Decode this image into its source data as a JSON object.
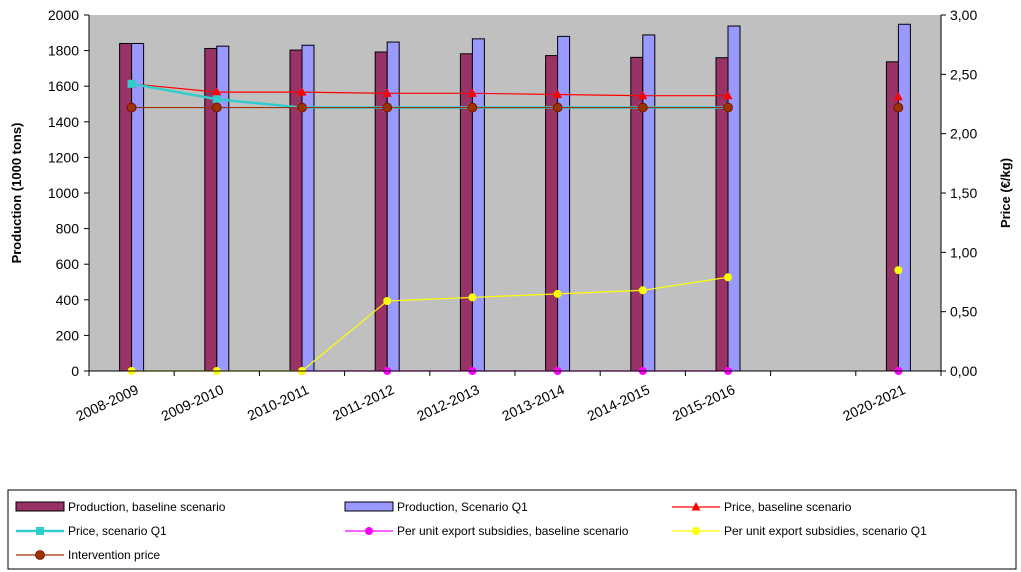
{
  "chart_data": {
    "type": "bar",
    "categories": [
      "2008-2009",
      "2009-2010",
      "2010-2011",
      "2011-2012",
      "2012-2013",
      "2013-2014",
      "2014-2015",
      "2015-2016",
      "",
      "2020-2021"
    ],
    "ylabel": "Production (1000 tons)",
    "y2label": "Price (€/kg)",
    "ylim": [
      0,
      2000
    ],
    "y2lim": [
      0,
      3
    ],
    "yticks": [
      "0",
      "200",
      "400",
      "600",
      "800",
      "1000",
      "1200",
      "1400",
      "1600",
      "1800",
      "2000"
    ],
    "y2ticks": [
      "0,00",
      "0,50",
      "1,00",
      "1,50",
      "2,00",
      "2,50",
      "3,00"
    ],
    "grid": false,
    "plot_background": "#c0c0c0",
    "legend_position": "bottom",
    "bar_series": [
      {
        "name": "Production, baseline scenario",
        "color": "#993366",
        "values": [
          1840,
          1812,
          1803,
          1792,
          1782,
          1772,
          1762,
          1760,
          null,
          1737
        ]
      },
      {
        "name": "Production, Scenario Q1",
        "color": "#9999ff",
        "values": [
          1840,
          1825,
          1830,
          1848,
          1866,
          1880,
          1888,
          1938,
          null,
          1948
        ]
      }
    ],
    "line_series": [
      {
        "name": "Price, baseline scenario",
        "color": "#ff0000",
        "marker": "triangle",
        "values": [
          2.42,
          2.35,
          2.35,
          2.34,
          2.34,
          2.33,
          2.32,
          2.32,
          null,
          2.31
        ]
      },
      {
        "name": "Price, scenario Q1",
        "color": "#33cccc",
        "marker": "square",
        "values": [
          2.42,
          2.29,
          2.22,
          2.22,
          2.22,
          2.22,
          2.22,
          2.22,
          null,
          null
        ]
      },
      {
        "name": "Per  unit export subsidies, baseline scenario",
        "color": "#ff00ff",
        "marker": "circle",
        "values": [
          null,
          null,
          0,
          0,
          0,
          0,
          0,
          0,
          null,
          0
        ]
      },
      {
        "name": "Per unit export subsidies, scenario Q1",
        "color": "#ffff00",
        "marker": "circle",
        "values": [
          0,
          0,
          0,
          0.59,
          0.62,
          0.65,
          0.68,
          0.79,
          null,
          0.85
        ]
      },
      {
        "name": "Intervention price",
        "color": "#993300",
        "marker": "circle-dark",
        "values": [
          2.22,
          2.22,
          2.22,
          2.22,
          2.22,
          2.22,
          2.22,
          2.22,
          null,
          2.22
        ]
      }
    ]
  }
}
